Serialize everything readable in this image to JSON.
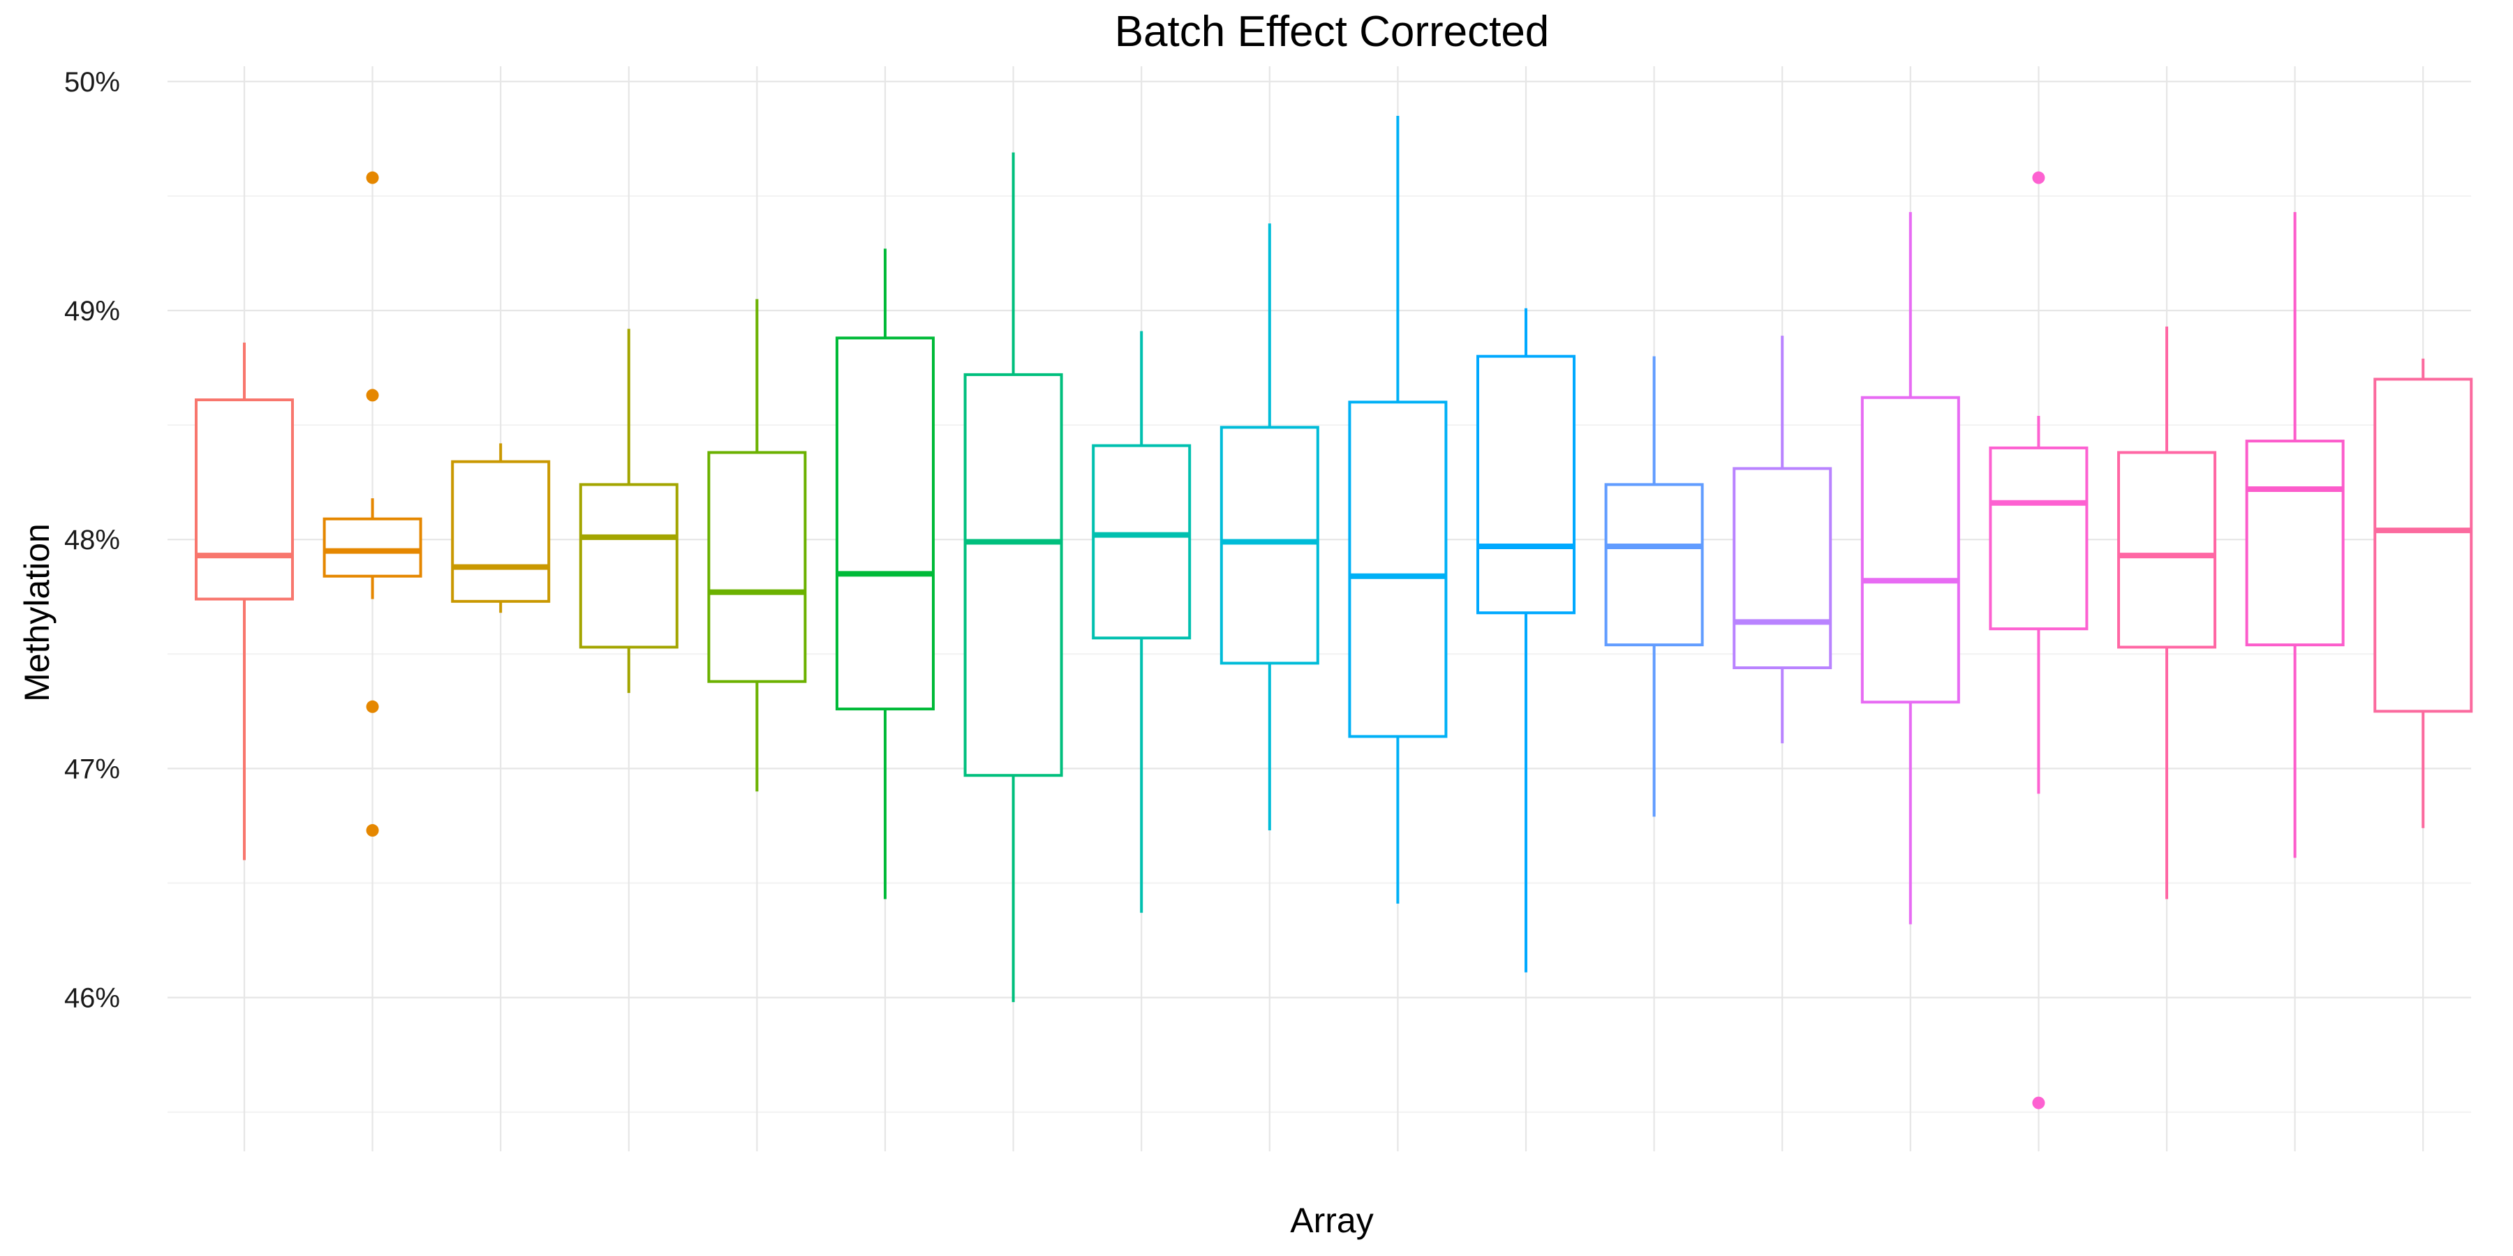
{
  "chart_data": {
    "type": "box",
    "title": "Batch Effect Corrected",
    "xlabel": "Array",
    "ylabel": "Methylation",
    "ylim": [
      45.5,
      50.1
    ],
    "y_ticks": [
      46,
      47,
      48,
      49,
      50
    ],
    "y_tick_labels": [
      "46%",
      "47%",
      "48%",
      "49%",
      "50%"
    ],
    "x_tick_labels_visible": false,
    "grid": true,
    "legend": "none",
    "boxes": [
      {
        "color": "#F8766D",
        "whisker_low": 46.6,
        "q1": 47.74,
        "median": 47.93,
        "q3": 48.61,
        "whisker_high": 48.86,
        "outliers": []
      },
      {
        "color": "#E58700",
        "whisker_low": 47.74,
        "q1": 47.84,
        "median": 47.95,
        "q3": 48.09,
        "whisker_high": 48.18,
        "outliers": [
          49.58,
          48.63,
          47.27,
          46.73
        ]
      },
      {
        "color": "#C99800",
        "whisker_low": 47.68,
        "q1": 47.73,
        "median": 47.88,
        "q3": 48.34,
        "whisker_high": 48.42,
        "outliers": []
      },
      {
        "color": "#A3A500",
        "whisker_low": 47.33,
        "q1": 47.53,
        "median": 48.01,
        "q3": 48.24,
        "whisker_high": 48.92,
        "outliers": []
      },
      {
        "color": "#6BB100",
        "whisker_low": 46.9,
        "q1": 47.38,
        "median": 47.77,
        "q3": 48.38,
        "whisker_high": 49.05,
        "outliers": []
      },
      {
        "color": "#00BA38",
        "whisker_low": 46.43,
        "q1": 47.26,
        "median": 47.85,
        "q3": 48.88,
        "whisker_high": 49.27,
        "outliers": []
      },
      {
        "color": "#00BF7D",
        "whisker_low": 45.98,
        "q1": 46.97,
        "median": 47.99,
        "q3": 48.72,
        "whisker_high": 49.69,
        "outliers": []
      },
      {
        "color": "#00C0AF",
        "whisker_low": 46.37,
        "q1": 47.57,
        "median": 48.02,
        "q3": 48.41,
        "whisker_high": 48.91,
        "outliers": []
      },
      {
        "color": "#00BCD8",
        "whisker_low": 46.73,
        "q1": 47.46,
        "median": 47.99,
        "q3": 48.49,
        "whisker_high": 49.38,
        "outliers": []
      },
      {
        "color": "#00B0F6",
        "whisker_low": 46.41,
        "q1": 47.14,
        "median": 47.84,
        "q3": 48.6,
        "whisker_high": 49.85,
        "outliers": []
      },
      {
        "color": "#00A9FF",
        "whisker_low": 46.11,
        "q1": 47.68,
        "median": 47.97,
        "q3": 48.8,
        "whisker_high": 49.01,
        "outliers": []
      },
      {
        "color": "#619CFF",
        "whisker_low": 46.79,
        "q1": 47.54,
        "median": 47.97,
        "q3": 48.24,
        "whisker_high": 48.8,
        "outliers": []
      },
      {
        "color": "#B983FF",
        "whisker_low": 47.11,
        "q1": 47.44,
        "median": 47.64,
        "q3": 48.31,
        "whisker_high": 48.89,
        "outliers": []
      },
      {
        "color": "#E76BF3",
        "whisker_low": 46.32,
        "q1": 47.29,
        "median": 47.82,
        "q3": 48.62,
        "whisker_high": 49.43,
        "outliers": []
      },
      {
        "color": "#FD61D1",
        "whisker_low": 46.89,
        "q1": 47.61,
        "median": 48.16,
        "q3": 48.4,
        "whisker_high": 48.54,
        "outliers": [
          49.58,
          45.54
        ]
      },
      {
        "color": "#FF67A4",
        "whisker_low": 46.43,
        "q1": 47.53,
        "median": 47.93,
        "q3": 48.38,
        "whisker_high": 48.93,
        "outliers": []
      },
      {
        "color": "#FC5CCB",
        "whisker_low": 46.61,
        "q1": 47.54,
        "median": 48.22,
        "q3": 48.43,
        "whisker_high": 49.43,
        "outliers": []
      },
      {
        "color": "#FB6A9E",
        "whisker_low": 46.74,
        "q1": 47.25,
        "median": 48.04,
        "q3": 48.7,
        "whisker_high": 48.79,
        "outliers": []
      }
    ]
  }
}
